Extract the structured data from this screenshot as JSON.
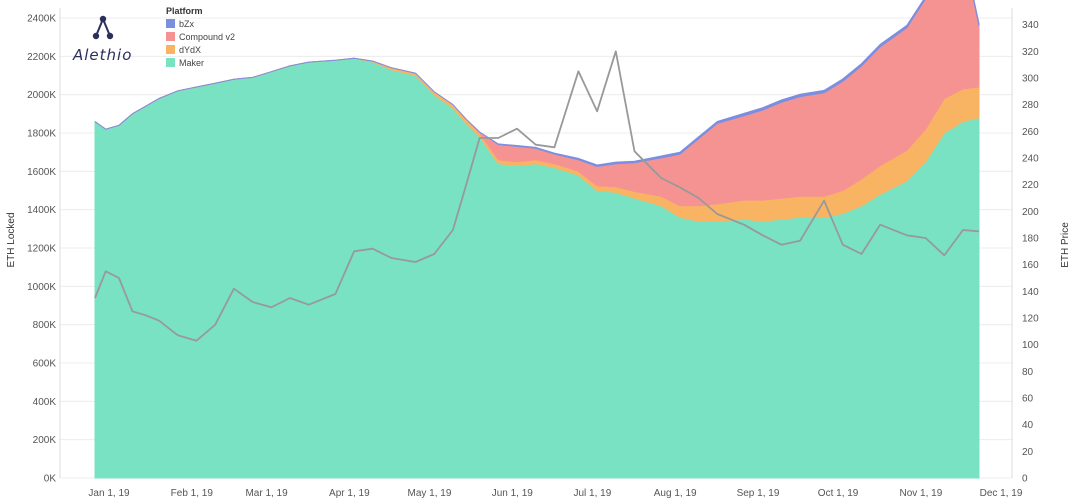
{
  "logo": {
    "text": "Alethio"
  },
  "chart_data": {
    "type": "area",
    "title": "",
    "xlabel": "",
    "ylabel": "ETH Locked",
    "y2label": "ETH Price",
    "x_tick_labels": [
      "Jan 1, 19",
      "Feb 1, 19",
      "Mar 1, 19",
      "Apr 1, 19",
      "May 1, 19",
      "Jun 1, 19",
      "Jul 1, 19",
      "Aug 1, 19",
      "Sep 1, 19",
      "Oct 1, 19",
      "Nov 1, 19",
      "Dec 1, 19"
    ],
    "x": [
      "2019-01-01",
      "2019-01-05",
      "2019-01-10",
      "2019-01-15",
      "2019-01-20",
      "2019-01-25",
      "2019-02-01",
      "2019-02-08",
      "2019-02-15",
      "2019-02-22",
      "2019-03-01",
      "2019-03-08",
      "2019-03-15",
      "2019-03-22",
      "2019-04-01",
      "2019-04-08",
      "2019-04-15",
      "2019-04-22",
      "2019-05-01",
      "2019-05-08",
      "2019-05-15",
      "2019-05-20",
      "2019-05-25",
      "2019-06-01",
      "2019-06-08",
      "2019-06-15",
      "2019-06-22",
      "2019-07-01",
      "2019-07-08",
      "2019-07-15",
      "2019-07-22",
      "2019-08-01",
      "2019-08-08",
      "2019-08-15",
      "2019-08-22",
      "2019-09-01",
      "2019-09-08",
      "2019-09-15",
      "2019-09-22",
      "2019-10-01",
      "2019-10-08",
      "2019-10-15",
      "2019-10-22",
      "2019-11-01",
      "2019-11-08",
      "2019-11-15",
      "2019-11-22",
      "2019-11-28"
    ],
    "ylim": [
      0,
      2400000
    ],
    "y2lim": [
      0,
      345
    ],
    "y_ticks": [
      0,
      200000,
      400000,
      600000,
      800000,
      1000000,
      1200000,
      1400000,
      1600000,
      1800000,
      2000000,
      2200000,
      2400000
    ],
    "y_tick_labels": [
      "0K",
      "200K",
      "400K",
      "600K",
      "800K",
      "1000K",
      "1200K",
      "1400K",
      "1600K",
      "1800K",
      "2000K",
      "2200K",
      "2400K"
    ],
    "y2_ticks": [
      0,
      20,
      40,
      60,
      80,
      100,
      120,
      140,
      160,
      180,
      200,
      220,
      240,
      260,
      280,
      300,
      320,
      340
    ],
    "grid": true,
    "legend_title": "Platform",
    "legend_position": "top-left",
    "series": [
      {
        "name": "bZx",
        "color": "#7b8fe0",
        "values": [
          0,
          0,
          0,
          0,
          0,
          0,
          0,
          0,
          0,
          0,
          0,
          0,
          0,
          0,
          0,
          0,
          0,
          0,
          0,
          0,
          0,
          0,
          0,
          3000,
          5000,
          5000,
          5000,
          8000,
          8000,
          8000,
          8000,
          10000,
          10000,
          10000,
          10000,
          12000,
          12000,
          12000,
          12000,
          12000,
          12000,
          12000,
          12000,
          12000,
          12000,
          12000,
          12000,
          12000
        ]
      },
      {
        "name": "Compound v2",
        "color": "#f59393",
        "values": [
          0,
          0,
          0,
          0,
          0,
          0,
          0,
          0,
          0,
          0,
          0,
          0,
          0,
          0,
          0,
          0,
          0,
          0,
          0,
          0,
          0,
          2000,
          5000,
          80000,
          80000,
          60000,
          50000,
          60000,
          100000,
          120000,
          150000,
          200000,
          270000,
          350000,
          420000,
          440000,
          470000,
          500000,
          520000,
          540000,
          570000,
          590000,
          620000,
          640000,
          680000,
          700000,
          720000,
          320000
        ]
      },
      {
        "name": "dYdX",
        "color": "#f9b463",
        "values": [
          0,
          0,
          0,
          0,
          0,
          0,
          0,
          0,
          0,
          0,
          0,
          0,
          0,
          0,
          0,
          0,
          5000,
          10000,
          12000,
          15000,
          18000,
          20000,
          20000,
          20000,
          20000,
          20000,
          20000,
          20000,
          25000,
          30000,
          35000,
          50000,
          60000,
          80000,
          90000,
          100000,
          110000,
          110000,
          110000,
          110000,
          120000,
          140000,
          150000,
          160000,
          170000,
          180000,
          170000,
          160000
        ]
      },
      {
        "name": "Maker",
        "color": "#78e2c3",
        "values": [
          1860000,
          1820000,
          1840000,
          1900000,
          1940000,
          1980000,
          2020000,
          2040000,
          2060000,
          2080000,
          2090000,
          2120000,
          2150000,
          2170000,
          2180000,
          2190000,
          2170000,
          2130000,
          2100000,
          2000000,
          1930000,
          1850000,
          1780000,
          1640000,
          1630000,
          1640000,
          1620000,
          1580000,
          1500000,
          1490000,
          1460000,
          1420000,
          1360000,
          1340000,
          1340000,
          1350000,
          1340000,
          1350000,
          1360000,
          1360000,
          1380000,
          1420000,
          1480000,
          1550000,
          1650000,
          1800000,
          1860000,
          1880000
        ]
      },
      {
        "name": "ETH Price",
        "color": "#999999",
        "axis": "right",
        "values": [
          135,
          155,
          150,
          125,
          122,
          118,
          107,
          103,
          115,
          142,
          132,
          128,
          135,
          130,
          138,
          170,
          172,
          165,
          162,
          168,
          186,
          220,
          255,
          255,
          262,
          250,
          248,
          305,
          275,
          320,
          245,
          225,
          218,
          210,
          198,
          190,
          182,
          175,
          178,
          208,
          175,
          168,
          190,
          182,
          180,
          167,
          186,
          185
        ]
      }
    ]
  }
}
